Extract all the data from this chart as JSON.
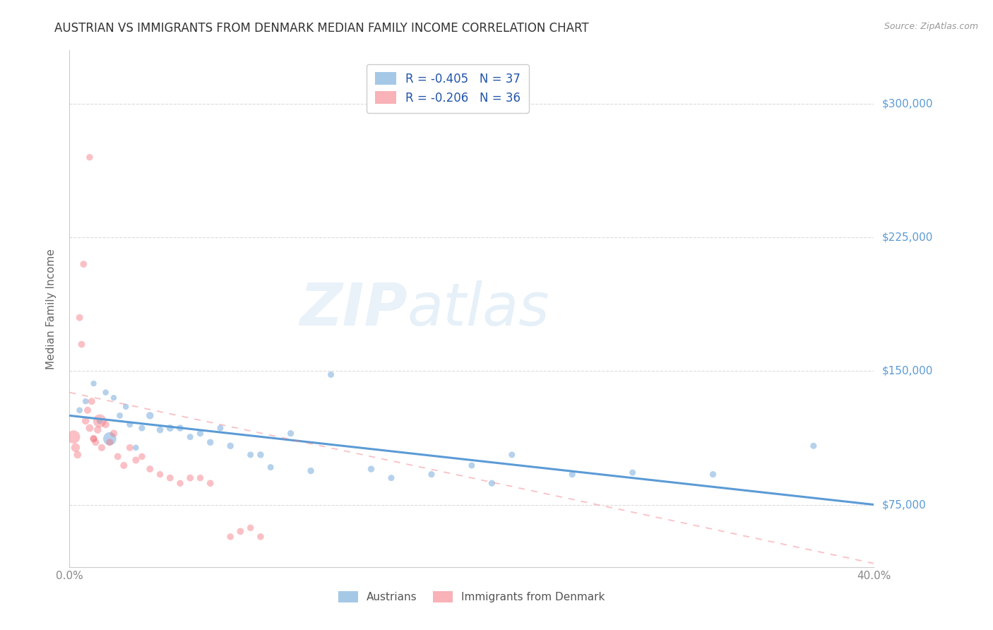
{
  "title": "AUSTRIAN VS IMMIGRANTS FROM DENMARK MEDIAN FAMILY INCOME CORRELATION CHART",
  "source": "Source: ZipAtlas.com",
  "ylabel": "Median Family Income",
  "xlim": [
    0.0,
    0.4
  ],
  "ylim": [
    40000,
    330000
  ],
  "yticks": [
    75000,
    150000,
    225000,
    300000
  ],
  "xticks": [
    0.0,
    0.05,
    0.1,
    0.15,
    0.2,
    0.25,
    0.3,
    0.35,
    0.4
  ],
  "xtick_labels": [
    "0.0%",
    "",
    "",
    "",
    "",
    "",
    "",
    "",
    "40.0%"
  ],
  "ytick_labels": [
    "$75,000",
    "$150,000",
    "$225,000",
    "$300,000"
  ],
  "legend_entries": [
    {
      "color": "#aec6e8",
      "label": "R = -0.405   N = 37"
    },
    {
      "color": "#f4b8c1",
      "label": "R = -0.206   N = 36"
    }
  ],
  "legend_bottom": [
    {
      "color": "#aec6e8",
      "label": "Austrians"
    },
    {
      "color": "#f4b8c1",
      "label": "Immigrants from Denmark"
    }
  ],
  "watermark_zip": "ZIP",
  "watermark_atlas": "atlas",
  "blue_scatter_x": [
    0.005,
    0.008,
    0.012,
    0.015,
    0.018,
    0.02,
    0.022,
    0.025,
    0.028,
    0.03,
    0.033,
    0.036,
    0.04,
    0.045,
    0.05,
    0.055,
    0.06,
    0.065,
    0.07,
    0.075,
    0.08,
    0.09,
    0.095,
    0.1,
    0.11,
    0.12,
    0.13,
    0.15,
    0.16,
    0.18,
    0.2,
    0.21,
    0.22,
    0.25,
    0.28,
    0.32,
    0.37
  ],
  "blue_scatter_y": [
    128000,
    133000,
    143000,
    122000,
    138000,
    112000,
    135000,
    125000,
    130000,
    120000,
    107000,
    118000,
    125000,
    117000,
    118000,
    118000,
    113000,
    115000,
    110000,
    118000,
    108000,
    103000,
    103000,
    96000,
    115000,
    94000,
    148000,
    95000,
    90000,
    92000,
    97000,
    87000,
    103000,
    92000,
    93000,
    92000,
    108000
  ],
  "blue_scatter_sizes": [
    40,
    38,
    36,
    40,
    38,
    180,
    36,
    40,
    38,
    42,
    38,
    44,
    56,
    48,
    52,
    48,
    42,
    44,
    46,
    42,
    46,
    42,
    46,
    42,
    44,
    46,
    42,
    46,
    42,
    44,
    42,
    44,
    42,
    44,
    42,
    44,
    42
  ],
  "pink_scatter_x": [
    0.002,
    0.003,
    0.004,
    0.005,
    0.006,
    0.007,
    0.008,
    0.009,
    0.01,
    0.011,
    0.012,
    0.013,
    0.014,
    0.015,
    0.016,
    0.018,
    0.02,
    0.022,
    0.024,
    0.027,
    0.03,
    0.033,
    0.036,
    0.04,
    0.045,
    0.05,
    0.055,
    0.06,
    0.065,
    0.07,
    0.08,
    0.085,
    0.09,
    0.095,
    0.01,
    0.012
  ],
  "pink_scatter_y": [
    113000,
    107000,
    103000,
    180000,
    165000,
    210000,
    122000,
    128000,
    118000,
    133000,
    112000,
    110000,
    117000,
    122000,
    107000,
    120000,
    110000,
    115000,
    102000,
    97000,
    107000,
    100000,
    102000,
    95000,
    92000,
    90000,
    87000,
    90000,
    90000,
    87000,
    57000,
    60000,
    62000,
    57000,
    270000,
    112000
  ],
  "pink_scatter_sizes": [
    180,
    80,
    60,
    50,
    50,
    50,
    56,
    52,
    60,
    52,
    56,
    52,
    56,
    180,
    52,
    56,
    52,
    56,
    50,
    52,
    50,
    52,
    48,
    50,
    46,
    50,
    46,
    50,
    46,
    48,
    46,
    50,
    46,
    48,
    46,
    48
  ],
  "blue_line_x": [
    0.0,
    0.4
  ],
  "blue_line_y": [
    125000,
    75000
  ],
  "pink_line_x": [
    0.0,
    0.4
  ],
  "pink_line_y": [
    138000,
    42000
  ],
  "title_color": "#333333",
  "blue_color": "#5b9bd5",
  "pink_color": "#f4747f",
  "right_label_color": "#5b9bd5",
  "grid_color": "#cccccc",
  "axis_color": "#cccccc"
}
